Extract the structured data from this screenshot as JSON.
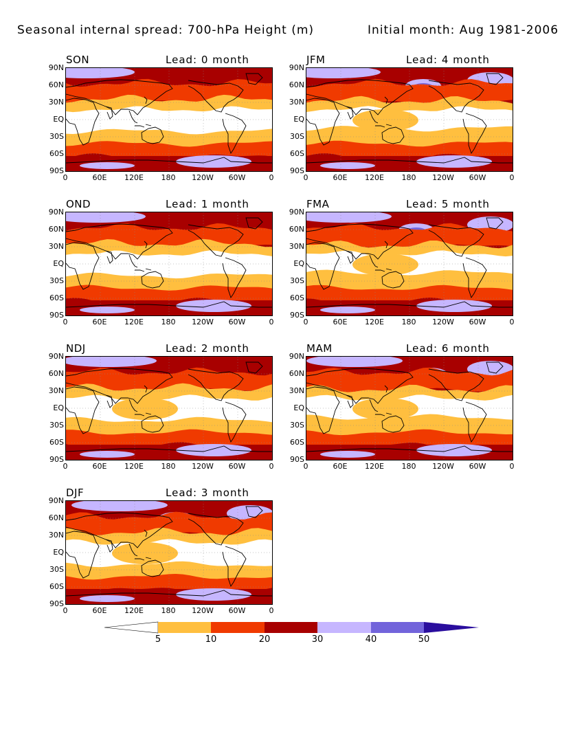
{
  "title": {
    "left": "Seasonal internal spread: 700-hPa Height (m)",
    "right": "Initial month: Aug 1981-2006"
  },
  "panels": [
    {
      "season": "SON",
      "lead": "Lead: 0 month"
    },
    {
      "season": "JFM",
      "lead": "Lead: 4 month"
    },
    {
      "season": "OND",
      "lead": "Lead: 1 month"
    },
    {
      "season": "FMA",
      "lead": "Lead: 5 month"
    },
    {
      "season": "NDJ",
      "lead": "Lead: 2 month"
    },
    {
      "season": "MAM",
      "lead": "Lead: 6 month"
    },
    {
      "season": "DJF",
      "lead": "Lead: 3 month"
    }
  ],
  "lat_ticks": [
    "90N",
    "60N",
    "30N",
    "EQ",
    "30S",
    "60S",
    "90S"
  ],
  "lon_ticks": [
    "0",
    "60E",
    "120E",
    "180",
    "120W",
    "60W",
    "0"
  ],
  "colorbar": {
    "labels": [
      "5",
      "10",
      "20",
      "30",
      "40",
      "50"
    ],
    "colors": [
      "#ffffff",
      "#ffbf3f",
      "#f03a00",
      "#a80000",
      "#c6b6ff",
      "#7264db",
      "#2a0e9e"
    ]
  },
  "field_colors": {
    "ocean_background": "#a80000",
    "tropics": "#ffffff",
    "subtropics": "#ffbf3f",
    "midlat": "#f03a00",
    "high_lat": "#a80000",
    "polar_low": "#c6b6ff",
    "polar_high": "#7264db",
    "coastline": "#000000"
  }
}
